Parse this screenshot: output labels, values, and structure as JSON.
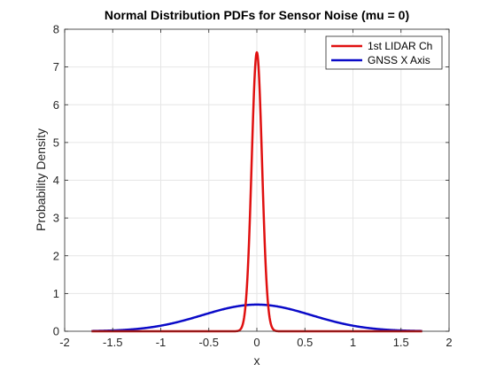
{
  "chart_data": {
    "type": "line",
    "title": "Normal Distribution PDFs for Sensor Noise (mu = 0)",
    "xlabel": "x",
    "ylabel": "Probability Density",
    "xlim": [
      -2,
      2
    ],
    "ylim": [
      0,
      8
    ],
    "xticks": [
      -2,
      -1.5,
      -1,
      -0.5,
      0,
      0.5,
      1,
      1.5,
      2
    ],
    "xtick_labels": [
      "-2",
      "-1.5",
      "-1",
      "-0.5",
      "0",
      "0.5",
      "1",
      "1.5",
      "2"
    ],
    "yticks": [
      0,
      1,
      2,
      3,
      4,
      5,
      6,
      7,
      8
    ],
    "ytick_labels": [
      "0",
      "1",
      "2",
      "3",
      "4",
      "5",
      "6",
      "7",
      "8"
    ],
    "grid": true,
    "legend_position": "top-right",
    "series": [
      {
        "name": "1st LIDAR Ch",
        "color": "#e01010",
        "distribution": "normal",
        "mu": 0,
        "sigma": 0.054,
        "x_range": [
          -1.72,
          1.72
        ]
      },
      {
        "name": "GNSS X Axis",
        "color": "#0a0ac8",
        "distribution": "normal",
        "mu": 0,
        "sigma": 0.565,
        "x_range": [
          -1.72,
          1.72
        ]
      }
    ]
  }
}
